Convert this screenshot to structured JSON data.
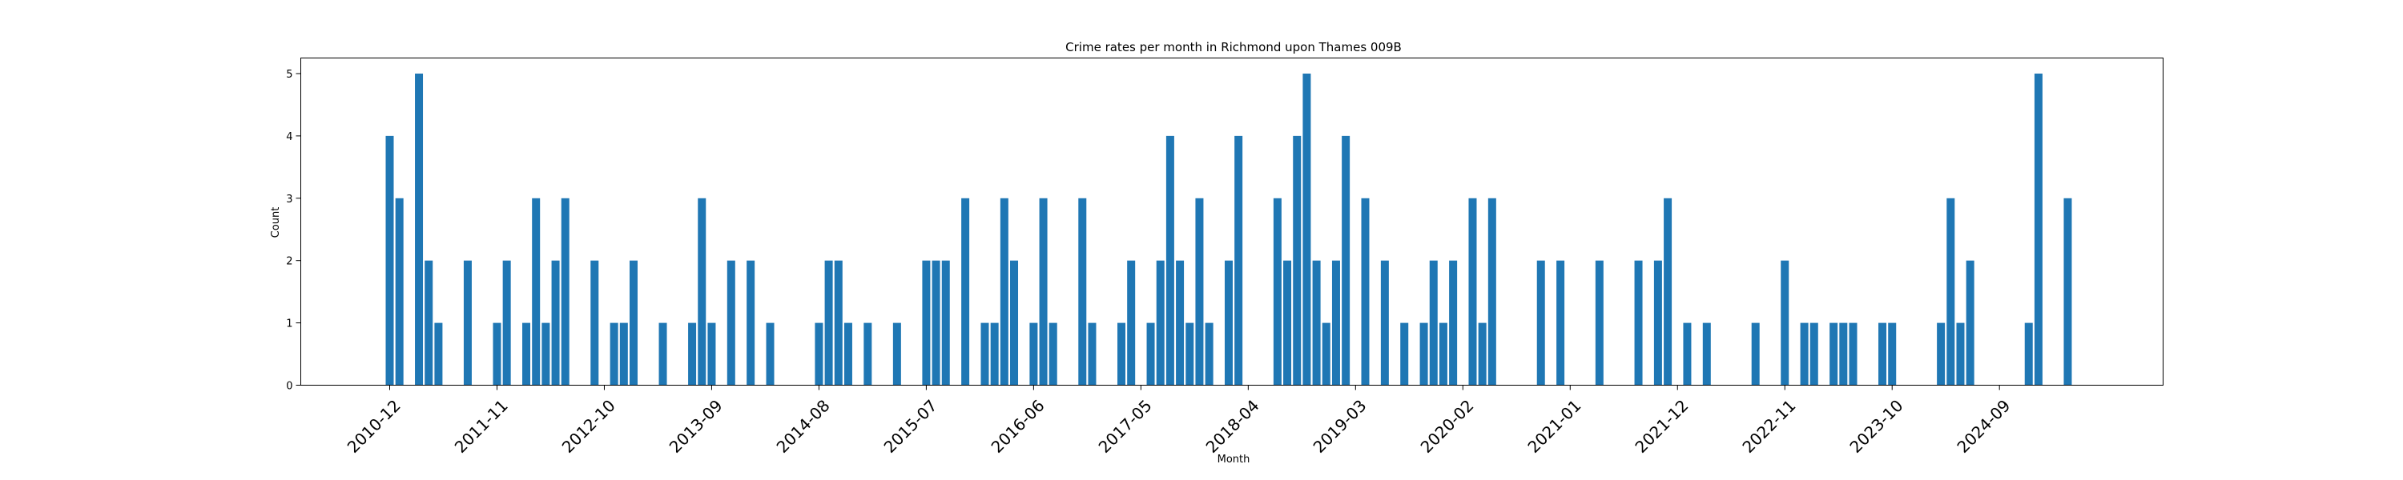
{
  "chart_data": {
    "type": "bar",
    "title": "Crime rates per month in Richmond upon Thames 009B",
    "xlabel": "Month",
    "ylabel": "Count",
    "ylim": [
      0,
      5.25
    ],
    "yticks": [
      0,
      1,
      2,
      3,
      4,
      5
    ],
    "xticks": [
      "2010-12",
      "2011-11",
      "2012-10",
      "2013-09",
      "2014-08",
      "2015-07",
      "2016-06",
      "2017-05",
      "2018-04",
      "2019-03",
      "2020-02",
      "2021-01",
      "2021-12",
      "2022-11",
      "2023-10",
      "2024-09"
    ],
    "bar_color": "#1f77b4",
    "grid": false,
    "values": [
      {
        "x": "2010-12",
        "y": 4
      },
      {
        "x": "2011-01",
        "y": 3
      },
      {
        "x": "2011-03",
        "y": 5
      },
      {
        "x": "2011-04",
        "y": 2
      },
      {
        "x": "2011-05",
        "y": 1
      },
      {
        "x": "2011-08",
        "y": 2
      },
      {
        "x": "2011-11",
        "y": 1
      },
      {
        "x": "2011-12",
        "y": 2
      },
      {
        "x": "2012-02",
        "y": 1
      },
      {
        "x": "2012-03",
        "y": 3
      },
      {
        "x": "2012-04",
        "y": 1
      },
      {
        "x": "2012-05",
        "y": 2
      },
      {
        "x": "2012-06",
        "y": 3
      },
      {
        "x": "2012-09",
        "y": 2
      },
      {
        "x": "2012-11",
        "y": 1
      },
      {
        "x": "2012-12",
        "y": 1
      },
      {
        "x": "2013-01",
        "y": 2
      },
      {
        "x": "2013-04",
        "y": 1
      },
      {
        "x": "2013-07",
        "y": 1
      },
      {
        "x": "2013-08",
        "y": 3
      },
      {
        "x": "2013-09",
        "y": 1
      },
      {
        "x": "2013-11",
        "y": 2
      },
      {
        "x": "2014-01",
        "y": 2
      },
      {
        "x": "2014-03",
        "y": 1
      },
      {
        "x": "2014-08",
        "y": 1
      },
      {
        "x": "2014-09",
        "y": 2
      },
      {
        "x": "2014-10",
        "y": 2
      },
      {
        "x": "2014-11",
        "y": 1
      },
      {
        "x": "2015-01",
        "y": 1
      },
      {
        "x": "2015-04",
        "y": 1
      },
      {
        "x": "2015-07",
        "y": 2
      },
      {
        "x": "2015-08",
        "y": 2
      },
      {
        "x": "2015-09",
        "y": 2
      },
      {
        "x": "2015-11",
        "y": 3
      },
      {
        "x": "2016-01",
        "y": 1
      },
      {
        "x": "2016-02",
        "y": 1
      },
      {
        "x": "2016-03",
        "y": 3
      },
      {
        "x": "2016-04",
        "y": 2
      },
      {
        "x": "2016-06",
        "y": 1
      },
      {
        "x": "2016-07",
        "y": 3
      },
      {
        "x": "2016-08",
        "y": 1
      },
      {
        "x": "2016-11",
        "y": 3
      },
      {
        "x": "2016-12",
        "y": 1
      },
      {
        "x": "2017-03",
        "y": 1
      },
      {
        "x": "2017-04",
        "y": 2
      },
      {
        "x": "2017-06",
        "y": 1
      },
      {
        "x": "2017-07",
        "y": 2
      },
      {
        "x": "2017-08",
        "y": 4
      },
      {
        "x": "2017-09",
        "y": 2
      },
      {
        "x": "2017-10",
        "y": 1
      },
      {
        "x": "2017-11",
        "y": 3
      },
      {
        "x": "2017-12",
        "y": 1
      },
      {
        "x": "2018-02",
        "y": 2
      },
      {
        "x": "2018-03",
        "y": 4
      },
      {
        "x": "2018-07",
        "y": 3
      },
      {
        "x": "2018-08",
        "y": 2
      },
      {
        "x": "2018-09",
        "y": 4
      },
      {
        "x": "2018-10",
        "y": 5
      },
      {
        "x": "2018-11",
        "y": 2
      },
      {
        "x": "2018-12",
        "y": 1
      },
      {
        "x": "2019-01",
        "y": 2
      },
      {
        "x": "2019-02",
        "y": 4
      },
      {
        "x": "2019-04",
        "y": 3
      },
      {
        "x": "2019-06",
        "y": 2
      },
      {
        "x": "2019-08",
        "y": 1
      },
      {
        "x": "2019-10",
        "y": 1
      },
      {
        "x": "2019-11",
        "y": 2
      },
      {
        "x": "2019-12",
        "y": 1
      },
      {
        "x": "2020-01",
        "y": 2
      },
      {
        "x": "2020-03",
        "y": 3
      },
      {
        "x": "2020-04",
        "y": 1
      },
      {
        "x": "2020-05",
        "y": 3
      },
      {
        "x": "2020-10",
        "y": 2
      },
      {
        "x": "2020-12",
        "y": 2
      },
      {
        "x": "2021-04",
        "y": 2
      },
      {
        "x": "2021-08",
        "y": 2
      },
      {
        "x": "2021-10",
        "y": 2
      },
      {
        "x": "2021-11",
        "y": 3
      },
      {
        "x": "2022-01",
        "y": 1
      },
      {
        "x": "2022-03",
        "y": 1
      },
      {
        "x": "2022-08",
        "y": 1
      },
      {
        "x": "2022-11",
        "y": 2
      },
      {
        "x": "2023-01",
        "y": 1
      },
      {
        "x": "2023-02",
        "y": 1
      },
      {
        "x": "2023-04",
        "y": 1
      },
      {
        "x": "2023-05",
        "y": 1
      },
      {
        "x": "2023-06",
        "y": 1
      },
      {
        "x": "2023-09",
        "y": 1
      },
      {
        "x": "2023-10",
        "y": 1
      },
      {
        "x": "2024-03",
        "y": 1
      },
      {
        "x": "2024-04",
        "y": 3
      },
      {
        "x": "2024-05",
        "y": 1
      },
      {
        "x": "2024-06",
        "y": 2
      },
      {
        "x": "2024-12",
        "y": 1
      },
      {
        "x": "2025-01",
        "y": 5
      },
      {
        "x": "2025-04",
        "y": 3
      }
    ]
  }
}
